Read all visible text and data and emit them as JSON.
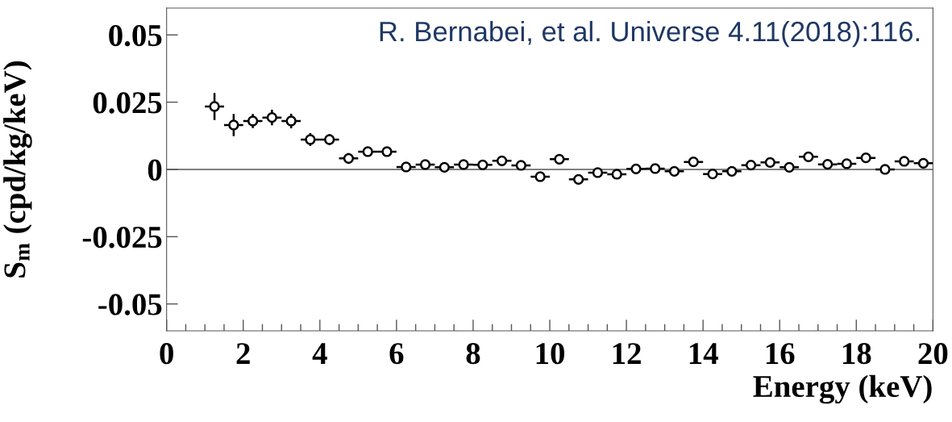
{
  "chart_data": {
    "type": "scatter",
    "xlabel": "Energy (keV)",
    "ylabel": "S$_{m}$ (cpd/kg/keV)",
    "annotations": [
      "R. Bernabei, et al. Universe 4.11(2018):116."
    ],
    "x": [
      1.25,
      1.75,
      2.25,
      2.75,
      3.25,
      3.75,
      4.25,
      4.75,
      5.25,
      5.75,
      6.25,
      6.75,
      7.25,
      7.75,
      8.25,
      8.75,
      9.25,
      9.75,
      10.25,
      10.75,
      11.25,
      11.75,
      12.25,
      12.75,
      13.25,
      13.75,
      14.25,
      14.75,
      15.25,
      15.75,
      16.25,
      16.75,
      17.25,
      17.75,
      18.25,
      18.75,
      19.25,
      19.75
    ],
    "series": [
      {
        "color": "#000000",
        "values": [
          0.0234,
          0.0165,
          0.018,
          0.0193,
          0.018,
          0.0111,
          0.0111,
          0.0041,
          0.0066,
          0.0066,
          0.0009,
          0.0018,
          0.0008,
          0.0018,
          0.0017,
          0.0032,
          0.0015,
          -0.0027,
          0.0038,
          -0.0037,
          -0.0012,
          -0.0018,
          0.0002,
          0.0003,
          -0.0007,
          0.0028,
          -0.0017,
          -0.0007,
          0.0016,
          0.0026,
          0.0008,
          0.0047,
          0.0019,
          0.0021,
          0.0043,
          0.0,
          0.003,
          0.0023
        ],
        "errors": [
          0.005,
          0.0041,
          0.0026,
          0.0029,
          0.0027,
          0.0024,
          0.002,
          0.002,
          0.0018,
          0.0018,
          0.0015,
          0.0015,
          0.0015,
          0.0015,
          0.0015,
          0.0015,
          0.0015,
          0.0015,
          0.0015,
          0.0015,
          0.0015,
          0.0015,
          0.0015,
          0.0015,
          0.0015,
          0.0015,
          0.0015,
          0.0015,
          0.0015,
          0.0015,
          0.0015,
          0.0015,
          0.0015,
          0.0015,
          0.0015,
          0.0015,
          0.0015,
          0.0015
        ],
        "xerrors": [
          0.25,
          0.25,
          0.25,
          0.25,
          0.25,
          0.25,
          0.25,
          0.25,
          0.25,
          0.25,
          0.25,
          0.25,
          0.25,
          0.25,
          0.25,
          0.25,
          0.25,
          0.25,
          0.25,
          0.25,
          0.25,
          0.25,
          0.25,
          0.25,
          0.25,
          0.25,
          0.25,
          0.25,
          0.25,
          0.25,
          0.25,
          0.25,
          0.25,
          0.25,
          0.25,
          0.25,
          0.25,
          0.25
        ]
      }
    ],
    "marker": "circle",
    "xlim": [
      0,
      20
    ],
    "xticks": [
      0,
      2,
      4,
      6,
      8,
      10,
      12,
      14,
      16,
      18,
      20
    ],
    "ylim": [
      -0.06,
      0.06
    ],
    "yticks": [
      -0.05,
      -0.025,
      0,
      0.025,
      0.05
    ],
    "ref_lines": [
      {
        "axis": "y",
        "value": 0,
        "color": "#555555"
      }
    ],
    "grid": false
  }
}
